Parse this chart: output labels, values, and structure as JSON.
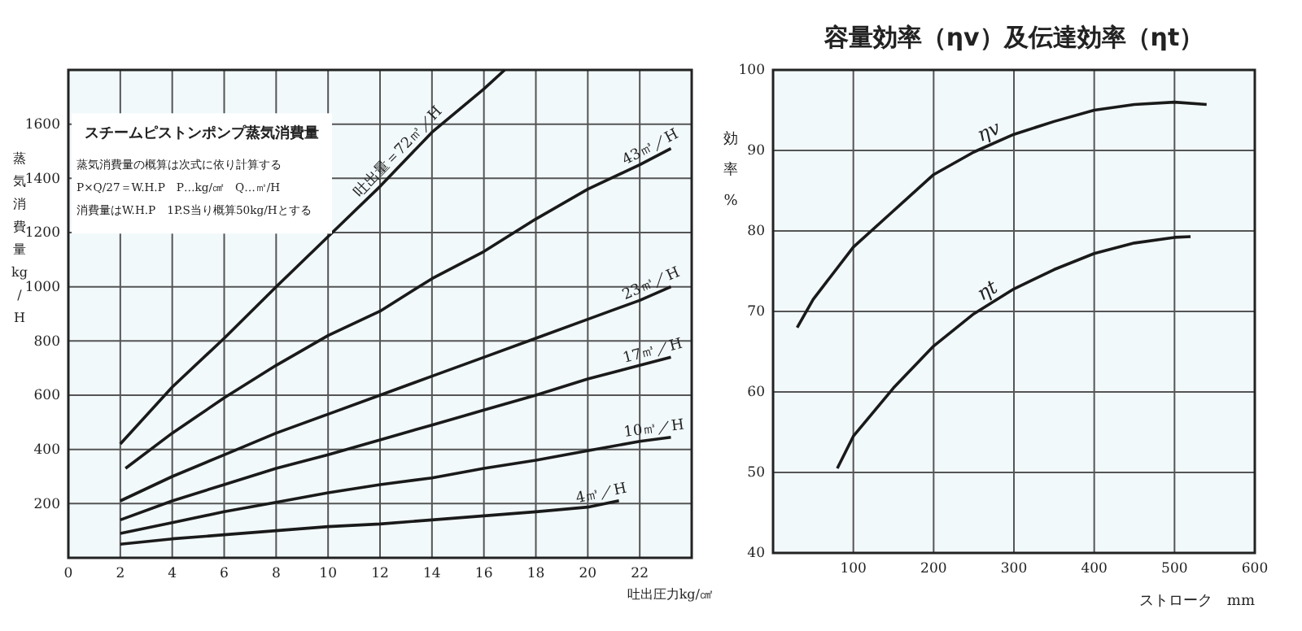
{
  "chart_data": [
    {
      "type": "line",
      "title": "スチームピストンポンプ蒸気消費量",
      "xlabel": "吐出圧力kg/㎠",
      "ylabel": "蒸気消費量kg/H",
      "annotations": [
        "蒸気消費量の概算は次式に依り計算する",
        "P×Q/27＝W.H.P　P…kg/㎠　Q…㎥/H",
        "消費量はW.H.P　1P.S当り概算50kg/Hとする"
      ],
      "xlim": [
        0,
        24
      ],
      "ylim": [
        0,
        1800
      ],
      "xticks": [
        0,
        2,
        4,
        6,
        8,
        10,
        12,
        14,
        16,
        18,
        20,
        22
      ],
      "yticks": [
        200,
        400,
        600,
        800,
        1000,
        1200,
        1400,
        1600
      ],
      "grid": true,
      "marker": "none",
      "line_style": "solid",
      "series": [
        {
          "name": "吐出量＝72㎥／H",
          "color": "#1a1a1a",
          "x": [
            2,
            4,
            6,
            8,
            10,
            12,
            14,
            16,
            16.8
          ],
          "values": [
            420,
            630,
            810,
            1000,
            1185,
            1370,
            1570,
            1730,
            1800
          ]
        },
        {
          "name": "43㎥／H",
          "color": "#1a1a1a",
          "x": [
            2.2,
            4,
            6,
            8,
            10,
            12,
            14,
            16,
            18,
            20,
            22,
            23.2
          ],
          "values": [
            330,
            460,
            590,
            710,
            820,
            910,
            1030,
            1130,
            1250,
            1360,
            1450,
            1510
          ]
        },
        {
          "name": "23㎥／H",
          "color": "#1a1a1a",
          "x": [
            2,
            4,
            6,
            8,
            10,
            12,
            14,
            16,
            18,
            20,
            22,
            23.2
          ],
          "values": [
            210,
            300,
            380,
            460,
            530,
            600,
            670,
            740,
            810,
            880,
            950,
            1000
          ]
        },
        {
          "name": "17㎥／H",
          "color": "#1a1a1a",
          "x": [
            2,
            4,
            6,
            8,
            10,
            12,
            14,
            16,
            18,
            20,
            22,
            23.2
          ],
          "values": [
            140,
            210,
            270,
            330,
            380,
            435,
            490,
            545,
            600,
            660,
            710,
            740
          ]
        },
        {
          "name": "10㎥／H",
          "color": "#1a1a1a",
          "x": [
            2,
            4,
            6,
            8,
            10,
            12,
            14,
            16,
            18,
            20,
            22,
            23.2
          ],
          "values": [
            90,
            130,
            170,
            205,
            240,
            270,
            295,
            330,
            360,
            395,
            430,
            445
          ]
        },
        {
          "name": "4㎥／H",
          "color": "#1a1a1a",
          "x": [
            2,
            4,
            6,
            8,
            10,
            12,
            14,
            16,
            18,
            20,
            21.2
          ],
          "values": [
            50,
            70,
            85,
            100,
            115,
            125,
            140,
            155,
            170,
            187,
            211
          ]
        }
      ]
    },
    {
      "type": "line",
      "title": "容量効率（ηv）及伝達効率（ηt）",
      "xlabel": "ストローク　mm",
      "ylabel": "効率%",
      "xlim": [
        0,
        600
      ],
      "ylim": [
        40,
        100
      ],
      "xticks": [
        100,
        200,
        300,
        400,
        500,
        600
      ],
      "yticks": [
        40,
        50,
        60,
        70,
        80,
        90,
        100
      ],
      "grid": true,
      "marker": "none",
      "line_style": "solid",
      "series": [
        {
          "name": "ηv",
          "color": "#1a1a1a",
          "x": [
            30,
            50,
            100,
            150,
            200,
            250,
            300,
            350,
            400,
            450,
            500,
            540
          ],
          "values": [
            68,
            71.5,
            78,
            82.5,
            87,
            89.8,
            92,
            93.6,
            95,
            95.7,
            96,
            95.7
          ]
        },
        {
          "name": "ηt",
          "color": "#1a1a1a",
          "x": [
            80,
            100,
            150,
            200,
            250,
            300,
            350,
            400,
            450,
            500,
            520
          ],
          "values": [
            50.5,
            54.5,
            60.5,
            65.7,
            69.7,
            72.8,
            75.2,
            77.2,
            78.5,
            79.2,
            79.3
          ]
        }
      ]
    }
  ]
}
